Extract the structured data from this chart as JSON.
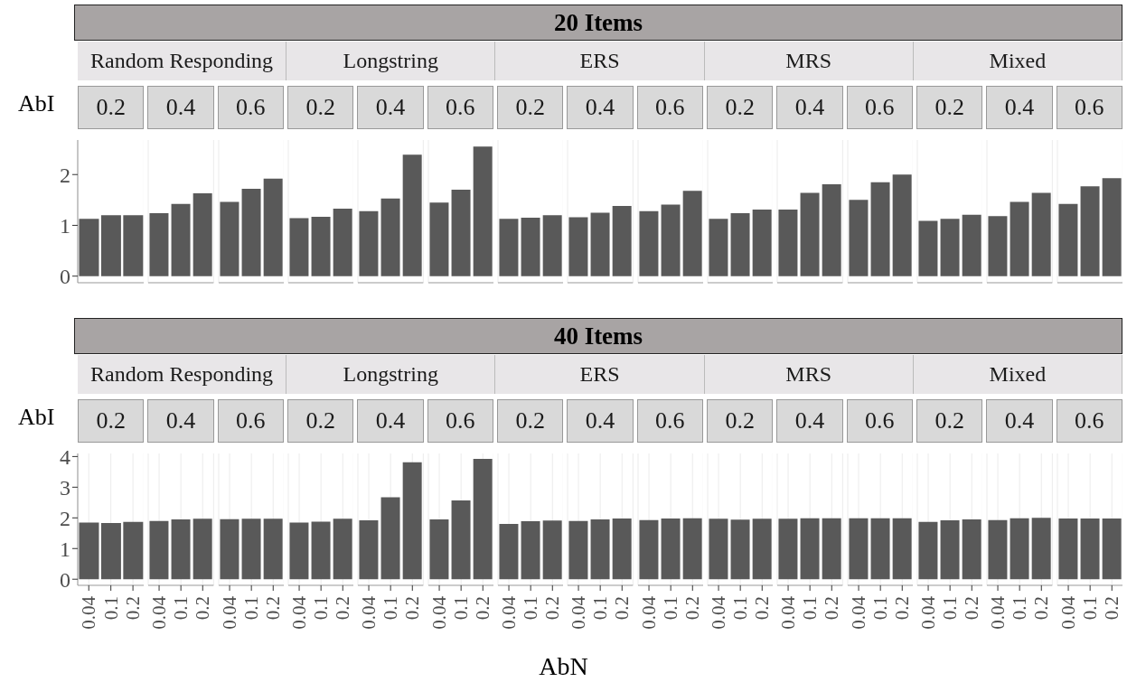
{
  "chart_data": [
    {
      "type": "bar",
      "title": "20 Items",
      "ylabel": "AbI",
      "color": "#595959",
      "grid": "x",
      "tick_labels": "y",
      "ylim": [
        -0.13,
        2.68
      ],
      "yticks": [
        0,
        1,
        2
      ],
      "annotations": [
        "Random Responding",
        "Longstring",
        "ERS",
        "MRS",
        "Mixed",
        "0.2",
        "0.4",
        "0.6",
        "0.2",
        "0.4",
        "0.6",
        "0.2",
        "0.4",
        "0.6",
        "0.2",
        "0.4",
        "0.6",
        "0.2",
        "0.4",
        "0.6"
      ],
      "categories": [
        null,
        null,
        null,
        null,
        null,
        null,
        null,
        null,
        null,
        null,
        null,
        null,
        null,
        null,
        null,
        null,
        null,
        null,
        null,
        null,
        null,
        null,
        null,
        null,
        null,
        null,
        null,
        null,
        null,
        null,
        null,
        null,
        null,
        null,
        null,
        null,
        null,
        null,
        null,
        null,
        null,
        null,
        null,
        null,
        null
      ],
      "values": [
        1.13,
        1.2,
        1.2,
        1.24,
        1.42,
        1.63,
        1.46,
        1.72,
        1.92,
        1.14,
        1.17,
        1.33,
        1.28,
        1.53,
        2.39,
        1.45,
        1.7,
        2.55,
        1.13,
        1.15,
        1.2,
        1.16,
        1.25,
        1.38,
        1.28,
        1.41,
        1.68,
        1.13,
        1.24,
        1.31,
        1.31,
        1.64,
        1.81,
        1.5,
        1.85,
        2.0,
        1.09,
        1.13,
        1.21,
        1.18,
        1.46,
        1.64,
        1.42,
        1.77,
        1.93
      ]
    },
    {
      "type": "bar",
      "title": "40 Items",
      "ylabel": "AbI",
      "xlabel": "AbN",
      "color": "#595959",
      "grid": "x",
      "ylim": [
        -0.2,
        4.1
      ],
      "yticks": [
        0,
        1,
        2,
        3,
        4
      ],
      "annotations": [
        "Random Responding",
        "Longstring",
        "ERS",
        "MRS",
        "Mixed",
        "0.2",
        "0.4",
        "0.6",
        "0.2",
        "0.4",
        "0.6",
        "0.2",
        "0.4",
        "0.6",
        "0.2",
        "0.4",
        "0.6",
        "0.2",
        "0.4",
        "0.6"
      ],
      "categories": [
        "0.04",
        "0.1",
        "0.2",
        "0.04",
        "0.1",
        "0.2",
        "0.04",
        "0.1",
        "0.2",
        "0.04",
        "0.1",
        "0.2",
        "0.04",
        "0.1",
        "0.2",
        "0.04",
        "0.1",
        "0.2",
        "0.04",
        "0.1",
        "0.2",
        "0.04",
        "0.1",
        "0.2",
        "0.04",
        "0.1",
        "0.2",
        "0.04",
        "0.1",
        "0.2",
        "0.04",
        "0.1",
        "0.2",
        "0.04",
        "0.1",
        "0.2",
        "0.04",
        "0.1",
        "0.2",
        "0.04",
        "0.1",
        "0.2",
        "0.04",
        "0.1",
        "0.2"
      ],
      "values": [
        1.85,
        1.83,
        1.87,
        1.9,
        1.95,
        1.97,
        1.96,
        1.97,
        1.97,
        1.85,
        1.88,
        1.97,
        1.92,
        2.67,
        3.81,
        1.95,
        2.57,
        3.92,
        1.8,
        1.89,
        1.91,
        1.9,
        1.95,
        1.98,
        1.93,
        1.98,
        1.99,
        1.97,
        1.94,
        1.97,
        1.97,
        1.99,
        1.99,
        1.99,
        1.99,
        1.99,
        1.87,
        1.92,
        1.95,
        1.93,
        1.99,
        2.0,
        1.98,
        1.98,
        1.98
      ]
    }
  ]
}
